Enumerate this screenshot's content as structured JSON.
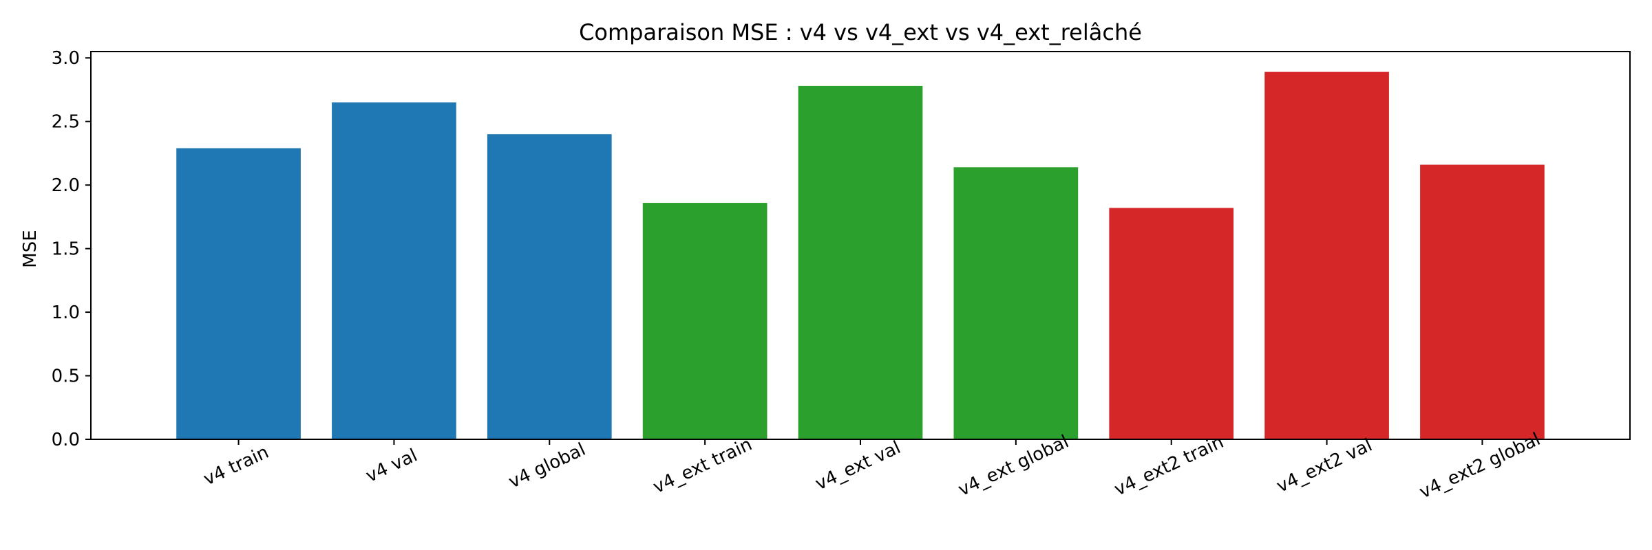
{
  "chart_data": {
    "type": "bar",
    "title": "Comparaison MSE : v4 vs v4_ext vs v4_ext_relâché",
    "xlabel": "",
    "ylabel": "MSE",
    "ylim": [
      0,
      3.05
    ],
    "yticks": [
      0.0,
      0.5,
      1.0,
      1.5,
      2.0,
      2.5,
      3.0
    ],
    "ytick_labels": [
      "0.0",
      "0.5",
      "1.0",
      "1.5",
      "2.0",
      "2.5",
      "3.0"
    ],
    "grid": false,
    "categories": [
      "v4 train",
      "v4 val",
      "v4 global",
      "v4_ext train",
      "v4_ext val",
      "v4_ext global",
      "v4_ext2 train",
      "v4_ext2 val",
      "v4_ext2 global"
    ],
    "values": [
      2.29,
      2.65,
      2.4,
      1.86,
      2.78,
      2.14,
      1.82,
      2.89,
      2.16
    ],
    "bar_colors": [
      "#1f77b4",
      "#1f77b4",
      "#1f77b4",
      "#2ca02c",
      "#2ca02c",
      "#2ca02c",
      "#d62728",
      "#d62728",
      "#d62728"
    ],
    "x_tick_rotation_deg": 25
  }
}
